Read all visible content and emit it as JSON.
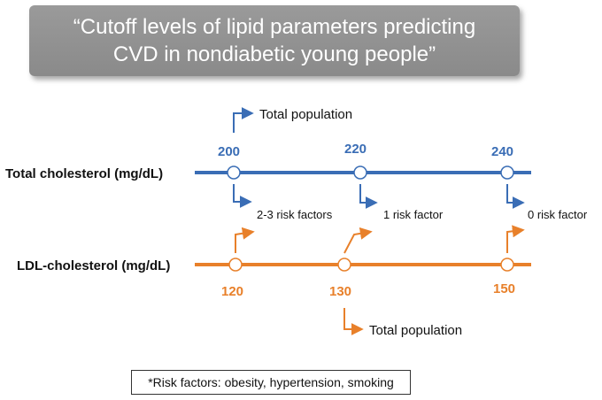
{
  "title": {
    "line1": "“Cutoff levels of lipid parameters predicting",
    "line2": "CVD in nondiabetic young people”"
  },
  "rows": [
    {
      "label": "Total cholesterol (mg/dL)",
      "color": "#3a6db5",
      "points": [
        {
          "value": "200",
          "above": "Total population",
          "below": "2-3 risk factors"
        },
        {
          "value": "220",
          "above": "",
          "below": "1 risk factor"
        },
        {
          "value": "240",
          "above": "",
          "below": "0 risk factor"
        }
      ]
    },
    {
      "label": "LDL-cholesterol (mg/dL)",
      "color": "#e8802a",
      "points": [
        {
          "value": "120",
          "below": "Total population"
        },
        {
          "value": "130",
          "below": ""
        },
        {
          "value": "150",
          "below": ""
        }
      ]
    }
  ],
  "footnote": "*Risk factors: obesity, hypertension, smoking"
}
